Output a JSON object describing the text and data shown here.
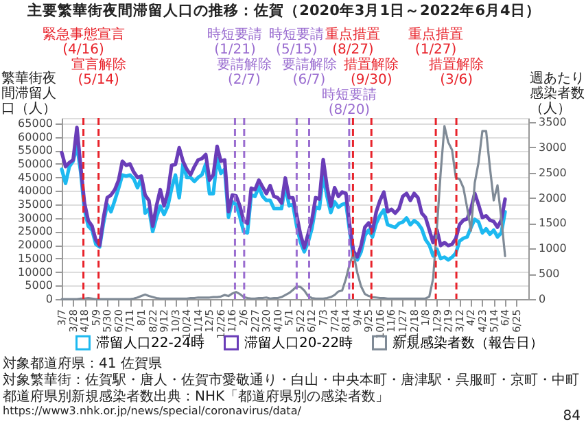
{
  "chart_data": {
    "type": "line",
    "title": "主要繁華街夜間滞留人口の推移：佐賀（2020年3月1日～2022年6月4日）",
    "ylabel": "繁華街夜間滞留人口（人）",
    "y2label": "週あたり感染者数（人）",
    "x": [
      "2020-03-07",
      "2020-03-14",
      "2020-03-21",
      "2020-03-28",
      "2020-04-04",
      "2020-04-11",
      "2020-04-18",
      "2020-04-25",
      "2020-05-02",
      "2020-05-09",
      "2020-05-16",
      "2020-05-23",
      "2020-05-30",
      "2020-06-06",
      "2020-06-13",
      "2020-06-20",
      "2020-06-27",
      "2020-07-04",
      "2020-07-11",
      "2020-07-18",
      "2020-07-25",
      "2020-08-01",
      "2020-08-08",
      "2020-08-15",
      "2020-08-22",
      "2020-08-29",
      "2020-09-05",
      "2020-09-12",
      "2020-09-19",
      "2020-09-26",
      "2020-10-03",
      "2020-10-10",
      "2020-10-17",
      "2020-10-24",
      "2020-10-31",
      "2020-11-07",
      "2020-11-14",
      "2020-11-21",
      "2020-11-28",
      "2020-12-05",
      "2020-12-12",
      "2020-12-19",
      "2020-12-26",
      "2021-01-02",
      "2021-01-09",
      "2021-01-16",
      "2021-01-23",
      "2021-01-30",
      "2021-02-06",
      "2021-02-13",
      "2021-02-20",
      "2021-02-27",
      "2021-03-06",
      "2021-03-13",
      "2021-03-20",
      "2021-03-27",
      "2021-04-03",
      "2021-04-10",
      "2021-04-17",
      "2021-04-24",
      "2021-05-01",
      "2021-05-08",
      "2021-05-15",
      "2021-05-22",
      "2021-05-29",
      "2021-06-05",
      "2021-06-12",
      "2021-06-19",
      "2021-06-26",
      "2021-07-03",
      "2021-07-10",
      "2021-07-17",
      "2021-07-24",
      "2021-07-31",
      "2021-08-07",
      "2021-08-14",
      "2021-08-21",
      "2021-08-28",
      "2021-09-04",
      "2021-09-11",
      "2021-09-18",
      "2021-09-25",
      "2021-10-02",
      "2021-10-09",
      "2021-10-16",
      "2021-10-23",
      "2021-10-30",
      "2021-11-06",
      "2021-11-13",
      "2021-11-20",
      "2021-11-27",
      "2021-12-04",
      "2021-12-11",
      "2021-12-18",
      "2021-12-25",
      "2022-01-01",
      "2022-01-08",
      "2022-01-15",
      "2022-01-22",
      "2022-01-29",
      "2022-02-05",
      "2022-02-12",
      "2022-02-19",
      "2022-02-26",
      "2022-03-05",
      "2022-03-12",
      "2022-03-19",
      "2022-03-26",
      "2022-04-02",
      "2022-04-09",
      "2022-04-16",
      "2022-04-23",
      "2022-04-30",
      "2022-05-07",
      "2022-05-14",
      "2022-05-21",
      "2022-05-28",
      "2022-06-04"
    ],
    "series": [
      {
        "name": "滞留人口22-24時",
        "color": "#1db9f0",
        "values": [
          48000,
          42800,
          49000,
          51000,
          56800,
          47000,
          33000,
          27000,
          25500,
          20300,
          19300,
          28000,
          35000,
          32300,
          36500,
          41000,
          45900,
          45500,
          45900,
          44500,
          41200,
          45000,
          31800,
          33400,
          25000,
          30200,
          34400,
          31300,
          34400,
          41000,
          45900,
          37500,
          50000,
          45000,
          45000,
          43500,
          45000,
          46000,
          50000,
          39000,
          39000,
          52000,
          46500,
          48000,
          30300,
          36000,
          35000,
          30500,
          25000,
          24500,
          38500,
          38000,
          41500,
          38000,
          36500,
          36500,
          33500,
          33500,
          33500,
          42000,
          34500,
          35000,
          27000,
          21000,
          17500,
          21000,
          26000,
          34000,
          33500,
          46000,
          38000,
          32000,
          36000,
          34000,
          35000,
          35500,
          25000,
          15500,
          14500,
          17500,
          23500,
          25500,
          23000,
          28000,
          31000,
          33000,
          27500,
          27000,
          26500,
          28000,
          28500,
          30000,
          27500,
          29000,
          28000,
          26000,
          22000,
          20000,
          16000,
          18500,
          15000,
          15500,
          14500,
          15500,
          17000,
          21500,
          22500,
          23000,
          26500,
          29500,
          28500,
          24500,
          26000,
          24000,
          25500,
          23000,
          24500,
          32300
        ]
      },
      {
        "name": "滞留人口20-22時",
        "color": "#6a3db8",
        "values": [
          54200,
          49000,
          50500,
          51500,
          63500,
          49000,
          35500,
          29000,
          27000,
          21800,
          19800,
          30000,
          37500,
          38500,
          40500,
          44000,
          51000,
          49500,
          50000,
          47000,
          45000,
          45500,
          38500,
          36500,
          27000,
          34500,
          40500,
          34500,
          39500,
          49500,
          49800,
          56000,
          51000,
          48000,
          46000,
          49000,
          51500,
          52000,
          53500,
          44000,
          46000,
          56500,
          51000,
          51500,
          32300,
          38500,
          38200,
          34500,
          29000,
          28000,
          41000,
          40500,
          44000,
          41500,
          39000,
          42000,
          38000,
          37500,
          35500,
          44800,
          37500,
          37500,
          31000,
          24000,
          19000,
          24000,
          29200,
          37500,
          37000,
          51600,
          41700,
          34400,
          41200,
          38000,
          39600,
          39100,
          27100,
          17700,
          15600,
          19800,
          26600,
          28200,
          25000,
          32300,
          36500,
          39600,
          32300,
          33200,
          31800,
          33400,
          38000,
          39100,
          36500,
          39100,
          37500,
          31800,
          30200,
          25600,
          20900,
          25600,
          19800,
          20900,
          19800,
          20300,
          22400,
          27600,
          29200,
          29700,
          33400,
          39100,
          34900,
          30200,
          30800,
          29200,
          28700,
          26600,
          29200,
          37000
        ]
      },
      {
        "name": "新規感染者数（報告日）",
        "color": "#7f8a96",
        "axis": "y2",
        "values": [
          0,
          0,
          0,
          0,
          0,
          10,
          10,
          20,
          10,
          0,
          0,
          0,
          0,
          0,
          0,
          0,
          0,
          0,
          0,
          10,
          30,
          60,
          90,
          60,
          40,
          20,
          10,
          10,
          10,
          10,
          10,
          10,
          10,
          10,
          20,
          20,
          30,
          30,
          30,
          30,
          40,
          40,
          50,
          80,
          60,
          110,
          140,
          100,
          40,
          20,
          10,
          10,
          20,
          20,
          30,
          10,
          20,
          20,
          40,
          80,
          120,
          180,
          250,
          240,
          170,
          60,
          20,
          10,
          10,
          10,
          20,
          40,
          80,
          150,
          170,
          400,
          700,
          900,
          520,
          250,
          100,
          60,
          40,
          30,
          20,
          20,
          10,
          10,
          10,
          10,
          10,
          10,
          10,
          10,
          10,
          10,
          10,
          50,
          400,
          1400,
          2500,
          3420,
          3100,
          2950,
          2400,
          2370,
          2200,
          1800,
          1350,
          2300,
          2700,
          3320,
          3320,
          2600,
          1950,
          2250,
          1600,
          850
        ]
      }
    ],
    "xlim": [
      "2020-03-07",
      "2022-07-17"
    ],
    "xticks": [
      {
        "value": "2020-03-07",
        "label": "3/7"
      },
      {
        "value": "2020-03-28",
        "label": "3/28"
      },
      {
        "value": "2020-04-18",
        "label": "4/18"
      },
      {
        "value": "2020-05-09",
        "label": "5/9"
      },
      {
        "value": "2020-05-30",
        "label": "5/30"
      },
      {
        "value": "2020-06-20",
        "label": "6/20"
      },
      {
        "value": "2020-07-11",
        "label": "7/11"
      },
      {
        "value": "2020-08-01",
        "label": "8/1"
      },
      {
        "value": "2020-08-22",
        "label": "8/22"
      },
      {
        "value": "2020-09-12",
        "label": "9/12"
      },
      {
        "value": "2020-10-03",
        "label": "10/3"
      },
      {
        "value": "2020-10-24",
        "label": "10/24"
      },
      {
        "value": "2020-11-14",
        "label": "11/14"
      },
      {
        "value": "2020-12-05",
        "label": "12/5"
      },
      {
        "value": "2020-12-26",
        "label": "12/26"
      },
      {
        "value": "2021-01-16",
        "label": "1/16"
      },
      {
        "value": "2021-02-06",
        "label": "2/6"
      },
      {
        "value": "2021-02-27",
        "label": "2/27"
      },
      {
        "value": "2021-03-20",
        "label": "3/20"
      },
      {
        "value": "2021-04-10",
        "label": "4/10"
      },
      {
        "value": "2021-05-01",
        "label": "5/1"
      },
      {
        "value": "2021-05-22",
        "label": "5/22"
      },
      {
        "value": "2021-06-12",
        "label": "6/12"
      },
      {
        "value": "2021-07-03",
        "label": "7/3"
      },
      {
        "value": "2021-07-24",
        "label": "7/24"
      },
      {
        "value": "2021-08-14",
        "label": "8/14"
      },
      {
        "value": "2021-09-04",
        "label": "9/4"
      },
      {
        "value": "2021-09-25",
        "label": "9/25"
      },
      {
        "value": "2021-10-16",
        "label": "10/16"
      },
      {
        "value": "2021-11-06",
        "label": "11/6"
      },
      {
        "value": "2021-11-27",
        "label": "11/27"
      },
      {
        "value": "2021-12-18",
        "label": "12/18"
      },
      {
        "value": "2022-01-08",
        "label": "1/8"
      },
      {
        "value": "2022-01-29",
        "label": "1/29"
      },
      {
        "value": "2022-02-19",
        "label": "2/19"
      },
      {
        "value": "2022-03-12",
        "label": "3/12"
      },
      {
        "value": "2022-04-02",
        "label": "4/2"
      },
      {
        "value": "2022-04-23",
        "label": "4/23"
      },
      {
        "value": "2022-05-14",
        "label": "5/14"
      },
      {
        "value": "2022-06-04",
        "label": "6/4"
      },
      {
        "value": "2022-06-25",
        "label": "6/25"
      }
    ],
    "ylim": [
      0,
      67000
    ],
    "yticks": [
      0,
      5000,
      10000,
      15000,
      20000,
      25000,
      30000,
      35000,
      40000,
      45000,
      50000,
      55000,
      60000,
      65000
    ],
    "y2lim": [
      0,
      3580
    ],
    "y2ticks": [
      0,
      500,
      1000,
      1500,
      2000,
      2500,
      3000,
      3500
    ],
    "ref_lines": [
      {
        "axis": "x",
        "value": "2020-04-16",
        "label": "緊急事態宣言(4/16)",
        "color": "#e8232b",
        "line_style": "dashed"
      },
      {
        "axis": "x",
        "value": "2020-05-14",
        "label": "宣言解除(5/14)",
        "color": "#e8232b",
        "line_style": "dashed"
      },
      {
        "axis": "x",
        "value": "2021-01-21",
        "label": "時短要請(1/21)",
        "color": "#9a6dd0",
        "line_style": "dashed"
      },
      {
        "axis": "x",
        "value": "2021-02-07",
        "label": "要請解除(2/7)",
        "color": "#9a6dd0",
        "line_style": "dashed"
      },
      {
        "axis": "x",
        "value": "2021-05-15",
        "label": "時短要請(5/15)",
        "color": "#9a6dd0",
        "line_style": "dashed"
      },
      {
        "axis": "x",
        "value": "2021-06-07",
        "label": "要請解除(6/7)",
        "color": "#9a6dd0",
        "line_style": "dashed"
      },
      {
        "axis": "x",
        "value": "2021-08-20",
        "label": "時短要請(8/20)",
        "color": "#9a6dd0",
        "line_style": "dashed"
      },
      {
        "axis": "x",
        "value": "2021-08-27",
        "label": "重点措置(8/27)",
        "color": "#e8232b",
        "line_style": "dashed"
      },
      {
        "axis": "x",
        "value": "2021-09-30",
        "label": "措置解除(9/30)",
        "color": "#e8232b",
        "line_style": "dashed"
      },
      {
        "axis": "x",
        "value": "2022-01-27",
        "label": "重点措置(1/27)",
        "color": "#e8232b",
        "line_style": "dashed"
      },
      {
        "axis": "x",
        "value": "2022-03-06",
        "label": "措置解除(3/6)",
        "color": "#e8232b",
        "line_style": "dashed"
      }
    ],
    "grid": "y",
    "legend": "bottom",
    "line_style": "solid",
    "annotations": [
      "対象都道府県：41 佐賀県",
      "対象繁華街：佐賀駅・唐人・佐賀市愛敬通り・白山・中央本町・唐津駅・呉服町・京町・中町",
      "都道府県別新規感染者数出典：NHK「都道府県別の感染者数」",
      "https://www3.nhk.or.jp/news/special/coronavirus/data/",
      "84"
    ]
  }
}
